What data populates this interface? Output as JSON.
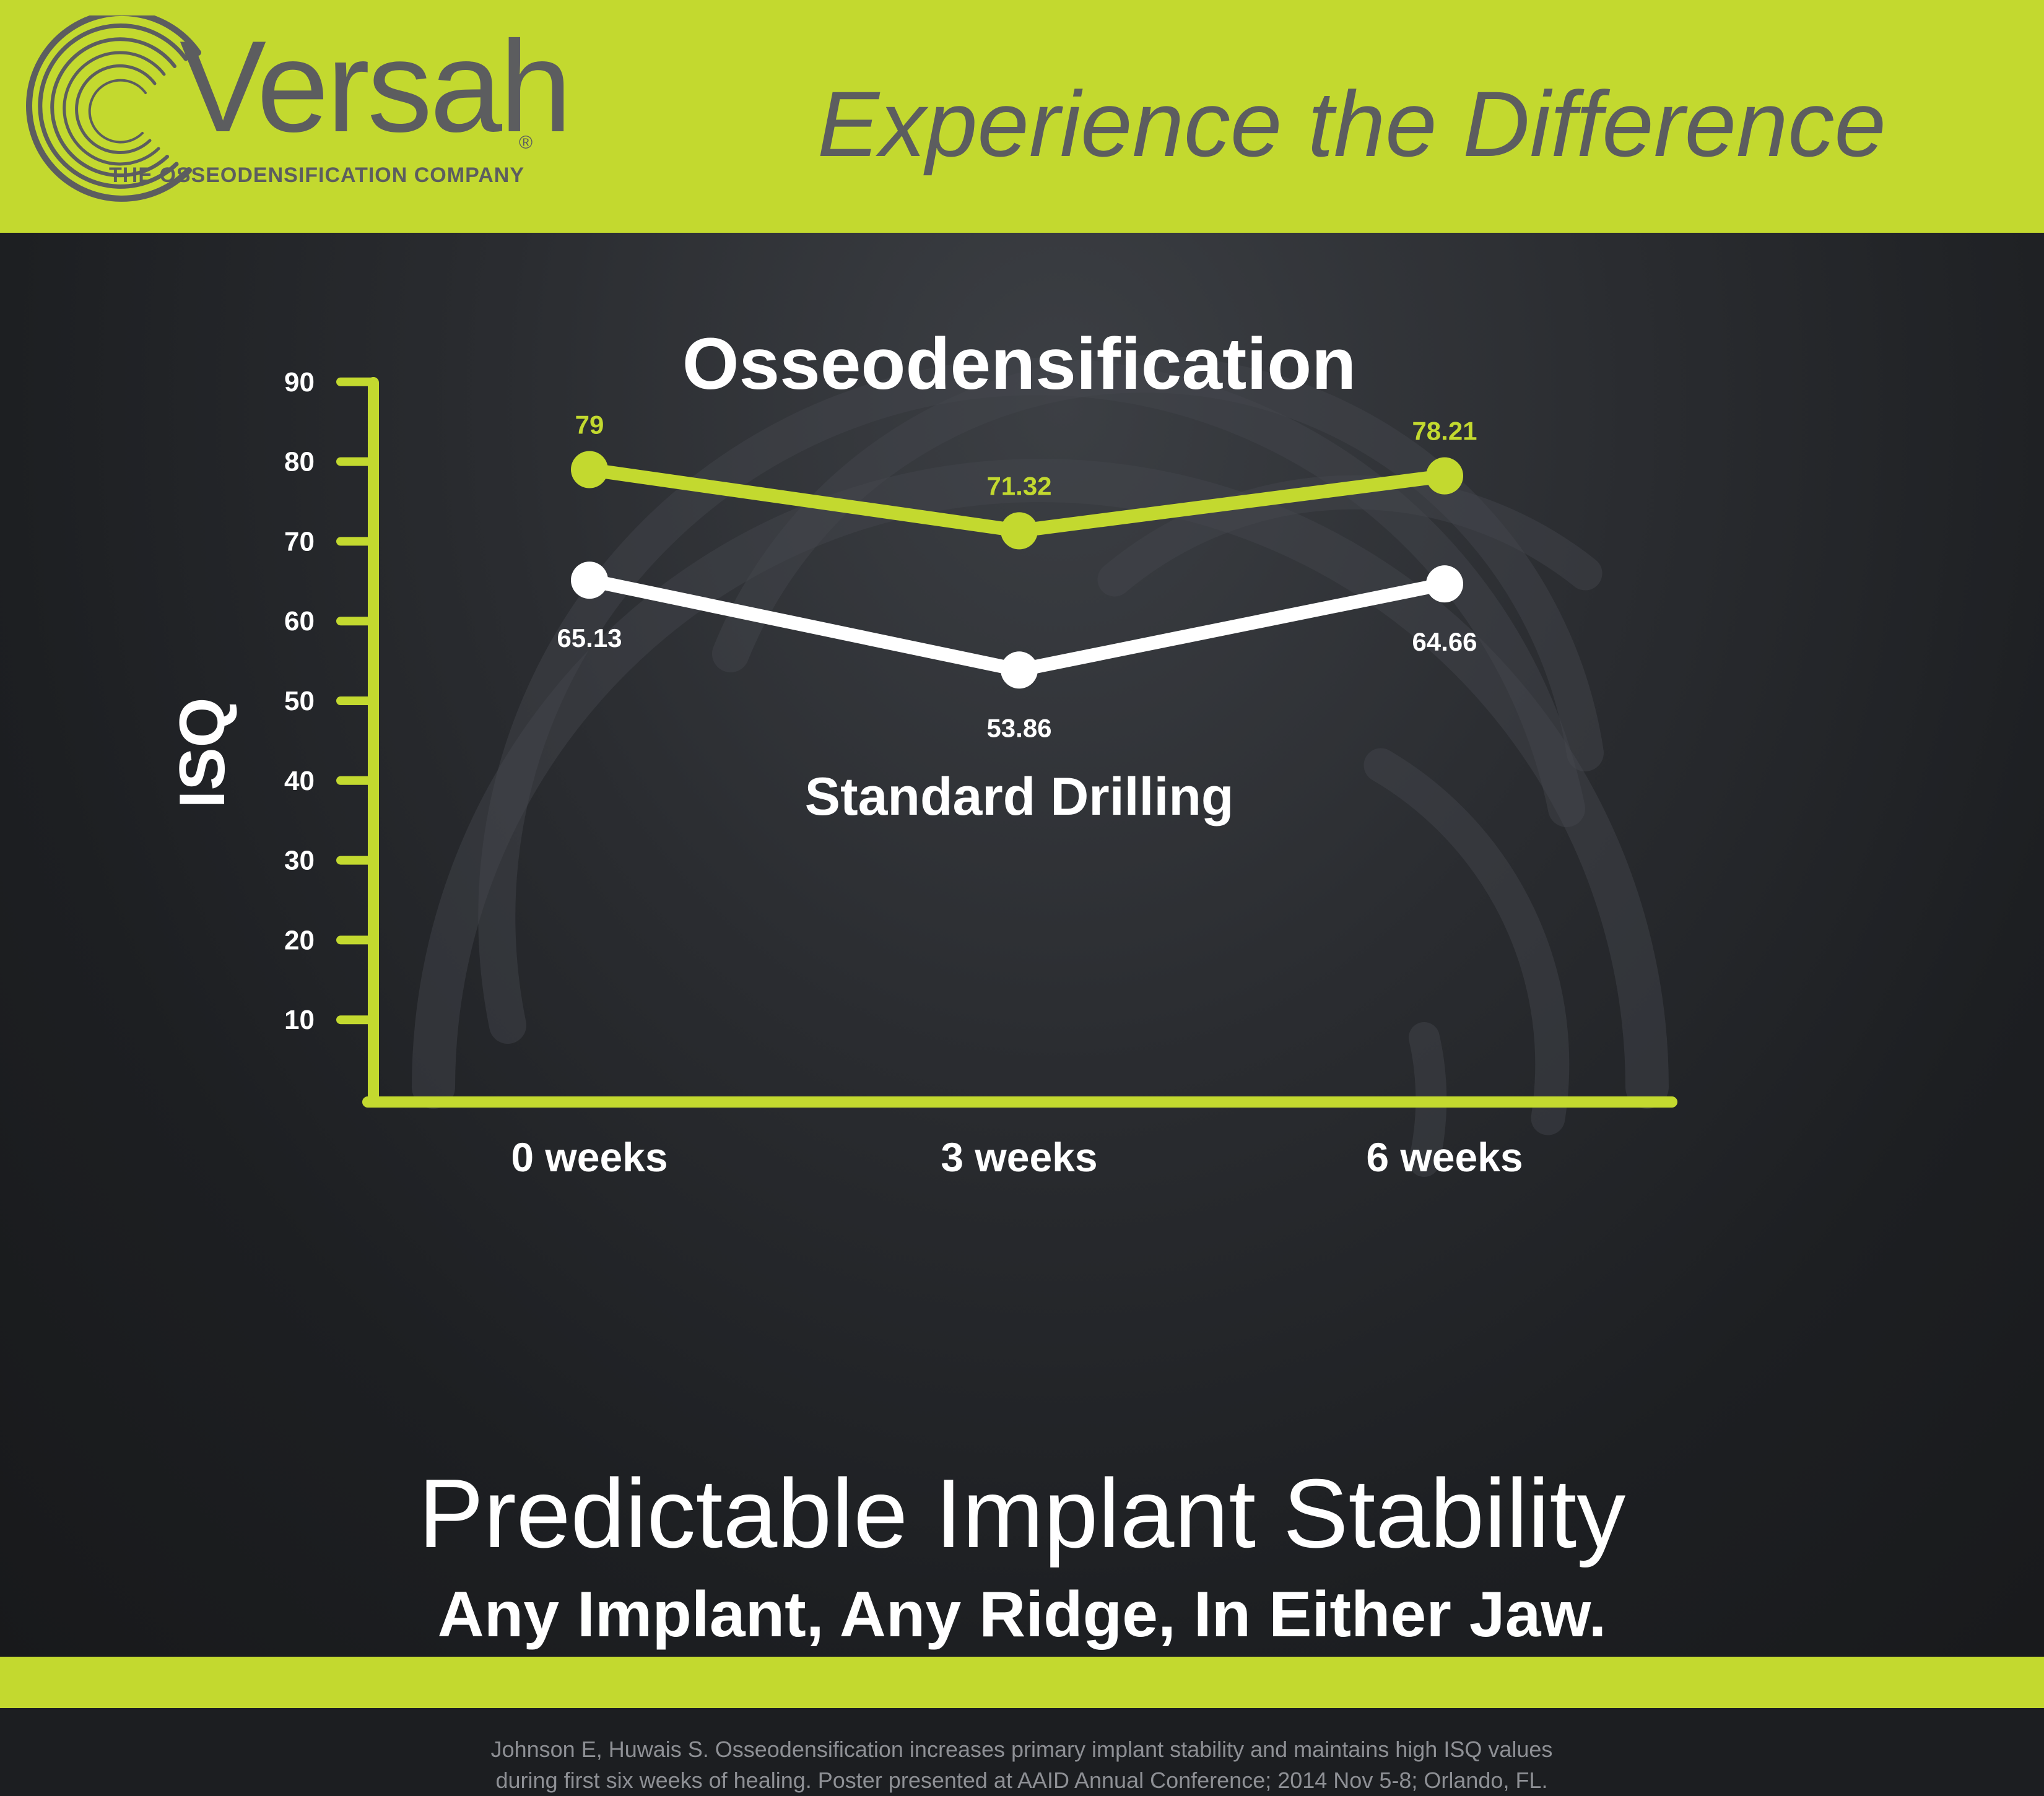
{
  "brand": {
    "name": "Versah",
    "registered": "®",
    "tagline": "THE OSSEODENSIFICATION COMPANY",
    "logo_icon": "concentric-arcs-logo-icon"
  },
  "header": {
    "slogan": "Experience the Difference"
  },
  "colors": {
    "accent": "#c3d92f",
    "background": "#1c1e21",
    "text": "#ffffff",
    "header_text": "#5c5d5f",
    "citation": "#8e9095"
  },
  "chart_data": {
    "type": "line",
    "title": "",
    "ylabel": "ISQ",
    "xlabel": "",
    "categories": [
      "0 weeks",
      "3 weeks",
      "6 weeks"
    ],
    "yticks": [
      10,
      20,
      30,
      40,
      50,
      60,
      70,
      80,
      90
    ],
    "ylim": [
      0,
      90
    ],
    "grid": false,
    "series": [
      {
        "name": "Osseodensification",
        "values": [
          79,
          71.32,
          78.21
        ],
        "labels": [
          "79",
          "71.32",
          "78.21"
        ],
        "color": "#c3d92f"
      },
      {
        "name": "Standard Drilling",
        "values": [
          65.13,
          53.86,
          64.66
        ],
        "labels": [
          "65.13",
          "53.86",
          "64.66"
        ],
        "color": "#ffffff"
      }
    ]
  },
  "headline": "Predictable Implant Stability",
  "subheadline": "Any Implant, Any Ridge, In Either Jaw.",
  "citation": {
    "line1": "Johnson E, Huwais S. Osseodensification increases primary implant stability and maintains high ISQ values",
    "line2": "during first six weeks of healing. Poster presented at AAID  Annual Conference; 2014 Nov 5-8; Orlando, FL."
  }
}
